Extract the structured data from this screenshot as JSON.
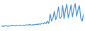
{
  "chart_data": {
    "type": "line",
    "categories": [
      null,
      null,
      null,
      null,
      null,
      null,
      null,
      null,
      null,
      null,
      null,
      null,
      null,
      null,
      null,
      null,
      null,
      null,
      null,
      null,
      null,
      null,
      null,
      null,
      null,
      null,
      null,
      null,
      null,
      null,
      null,
      null,
      null,
      null,
      null,
      null,
      null,
      null,
      null,
      null,
      null,
      null,
      null,
      null,
      null,
      null,
      null,
      null,
      null,
      null,
      null,
      null,
      null,
      null,
      null,
      null,
      null,
      null,
      null,
      null
    ],
    "values": [
      12,
      13,
      12,
      14,
      13,
      12,
      14,
      13,
      15,
      14,
      13,
      15,
      14,
      16,
      15,
      14,
      16,
      15,
      17,
      16,
      18,
      17,
      16,
      18,
      17,
      19,
      18,
      20,
      19,
      22,
      20,
      25,
      21,
      30,
      22,
      55,
      30,
      40,
      65,
      35,
      50,
      80,
      40,
      45,
      85,
      38,
      70,
      90,
      42,
      60,
      88,
      45,
      75,
      92,
      48,
      70,
      85,
      40,
      30,
      55
    ],
    "color": "#3d8fd8",
    "ylim": [
      0,
      100
    ],
    "tick_labels": false,
    "grid": false
  }
}
